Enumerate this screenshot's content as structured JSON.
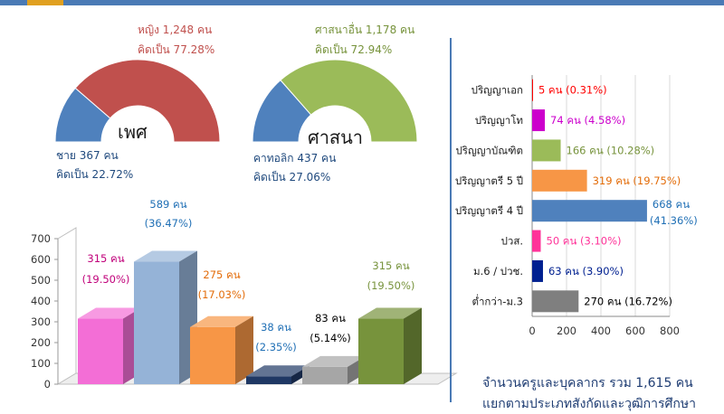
{
  "chart_data": [
    {
      "type": "pie",
      "title": "เพศ",
      "slices": [
        {
          "name": "หญิง",
          "value": 1248,
          "label1": "หญิง 1,248 คน",
          "label2": "คิดเป็น 77.28%",
          "color": "#c0504d"
        },
        {
          "name": "ชาย",
          "value": 367,
          "label1": "ชาย 367 คน",
          "label2": "คิดเป็น 22.72%",
          "color": "#4f81bd"
        }
      ]
    },
    {
      "type": "pie",
      "title": "ศาสนา",
      "slices": [
        {
          "name": "ศาสนาอื่น",
          "value": 1178,
          "label1": "ศาสนาอื่น 1,178 คน",
          "label2": "คิดเป็น 72.94%",
          "color": "#9bbb59"
        },
        {
          "name": "คาทอลิก",
          "value": 437,
          "label1": "คาทอลิก 437 คน",
          "label2": "คิดเป็น 27.06%",
          "color": "#4f81bd"
        }
      ]
    },
    {
      "type": "bar",
      "ylim": [
        0,
        700
      ],
      "yticks": [
        0,
        100,
        200,
        300,
        400,
        500,
        600,
        700
      ],
      "values": [
        315,
        589,
        275,
        38,
        83,
        315
      ],
      "labels": [
        "315 คน",
        "589 คน",
        "275 คน",
        "38 คน",
        "83 คน",
        "315 คน"
      ],
      "percents": [
        "(19.50%)",
        "(36.47%)",
        "(17.03%)",
        "(2.35%)",
        "(5.14%)",
        "(19.50%)"
      ],
      "colors": [
        "#f36ed6",
        "#95b3d7",
        "#f79646",
        "#1f3864",
        "#a6a6a6",
        "#77933c"
      ],
      "label_colors": [
        "#c0007a",
        "#1f6fb5",
        "#e36c09",
        "#1f6fb5",
        "#000000",
        "#77933c"
      ]
    },
    {
      "type": "bar",
      "orientation": "horizontal",
      "categories": [
        "ปริญญาเอก",
        "ปริญญาโท",
        "ปริญญาบัณฑิต",
        "ปริญญาตรี 5 ปี",
        "ปริญญาตรี 4 ปี",
        "ปวส.",
        "ม.6 / ปวช.",
        "ต่ำกว่า-ม.3"
      ],
      "values": [
        5,
        74,
        166,
        319,
        668,
        50,
        63,
        270
      ],
      "labels": [
        "5 คน (0.31%)",
        "74 คน (4.58%)",
        "166 คน (10.28%)",
        "319 คน (19.75%)",
        "668 คน",
        "50 คน (3.10%)",
        "63 คน (3.90%)",
        "270 คน (16.72%)"
      ],
      "label_extra": [
        "",
        "",
        "",
        "",
        "(41.36%)",
        "",
        "",
        ""
      ],
      "colors": [
        "#ff0000",
        "#cc00cc",
        "#9bbb59",
        "#f79646",
        "#4f81bd",
        "#ff3399",
        "#002090",
        "#7f7f7f"
      ],
      "label_colors": [
        "#ff0000",
        "#cc00cc",
        "#77933c",
        "#e36c09",
        "#1f6fb5",
        "#ff3399",
        "#002090",
        "#000000"
      ],
      "xlim": [
        0,
        800
      ],
      "xticks": [
        0,
        200,
        400,
        600,
        800
      ]
    }
  ],
  "footer": "จำนวนครูและบุคลากร รวม 1,615 คน",
  "footer2": "แยกตามประเภทสังกัดและวุฒิการศึกษา"
}
